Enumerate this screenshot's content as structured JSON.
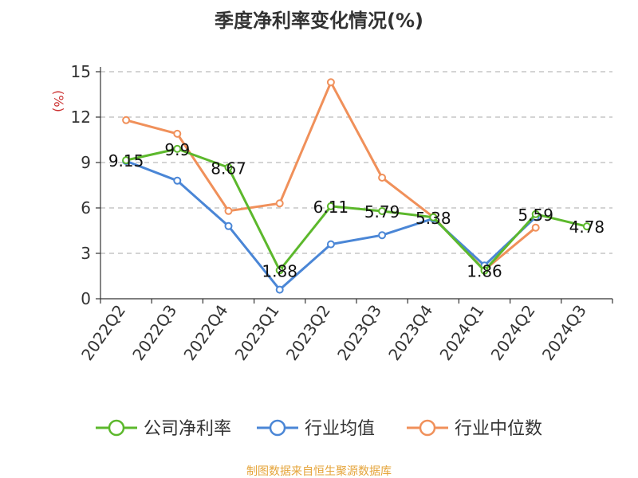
{
  "chart_data": {
    "type": "line",
    "title": "季度净利率变化情况(%)",
    "ylabel": "(%)",
    "ylim": [
      0,
      15
    ],
    "yticks": [
      0,
      3,
      6,
      9,
      12,
      15
    ],
    "grid": "horizontal-dashed",
    "categories": [
      "2022Q2",
      "2022Q3",
      "2022Q4",
      "2023Q1",
      "2023Q2",
      "2023Q3",
      "2023Q4",
      "2024Q1",
      "2024Q2",
      "2024Q3"
    ],
    "series": [
      {
        "name": "公司净利率",
        "color": "#5cb82c",
        "values": [
          9.15,
          9.9,
          8.67,
          1.88,
          6.11,
          5.79,
          5.38,
          1.86,
          5.59,
          4.78
        ],
        "labels": [
          "9.15",
          "9.9",
          "8.67",
          "1.88",
          "6.11",
          "5.79",
          "5.38",
          "1.86",
          "5.59",
          "4.78"
        ]
      },
      {
        "name": "行业均值",
        "color": "#4a86d6",
        "values": [
          9.1,
          7.8,
          4.8,
          0.6,
          3.6,
          4.2,
          5.3,
          2.2,
          5.4,
          null
        ]
      },
      {
        "name": "行业中位数",
        "color": "#f0905a",
        "values": [
          11.8,
          10.9,
          5.8,
          6.3,
          14.3,
          8.0,
          5.4,
          1.9,
          4.7,
          null
        ]
      }
    ],
    "legend_position": "bottom",
    "source": "制图数据来自恒生聚源数据库"
  }
}
